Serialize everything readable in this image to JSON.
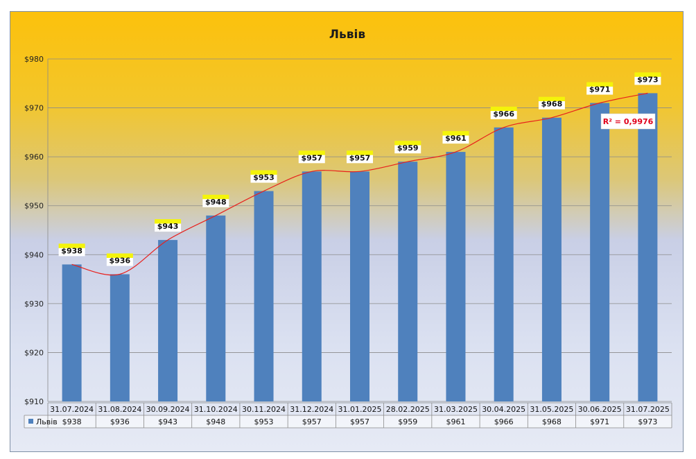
{
  "chart_data": {
    "type": "bar",
    "title": "Львів",
    "categories": [
      "31.07.2024",
      "31.08.2024",
      "30.09.2024",
      "31.10.2024",
      "30.11.2024",
      "31.12.2024",
      "31.01.2025",
      "28.02.2025",
      "31.03.2025",
      "30.04.2025",
      "31.05.2025",
      "30.06.2025",
      "31.07.2025"
    ],
    "series": [
      {
        "name": "Львів",
        "values": [
          938,
          936,
          943,
          948,
          953,
          957,
          957,
          959,
          961,
          966,
          968,
          971,
          973
        ],
        "color": "#4f81bd"
      }
    ],
    "data_labels": [
      "$938",
      "$936",
      "$943",
      "$948",
      "$953",
      "$957",
      "$957",
      "$959",
      "$961",
      "$966",
      "$968",
      "$971",
      "$973"
    ],
    "y_ticks": [
      "$910",
      "$920",
      "$930",
      "$940",
      "$950",
      "$960",
      "$970",
      "$980"
    ],
    "ylim": [
      910,
      980
    ],
    "grid": true,
    "trendline": {
      "type": "polynomial",
      "color": "#e8201c",
      "r2_label": "R² = 0,9976"
    },
    "data_table": {
      "row_label": "Львів",
      "values": [
        "$938",
        "$936",
        "$943",
        "$948",
        "$953",
        "$957",
        "$957",
        "$959",
        "$961",
        "$966",
        "$968",
        "$971",
        "$973"
      ]
    },
    "colors": {
      "bar": "#4f81bd",
      "trend": "#e8201c",
      "label_highlight": "#f4f40a"
    }
  }
}
